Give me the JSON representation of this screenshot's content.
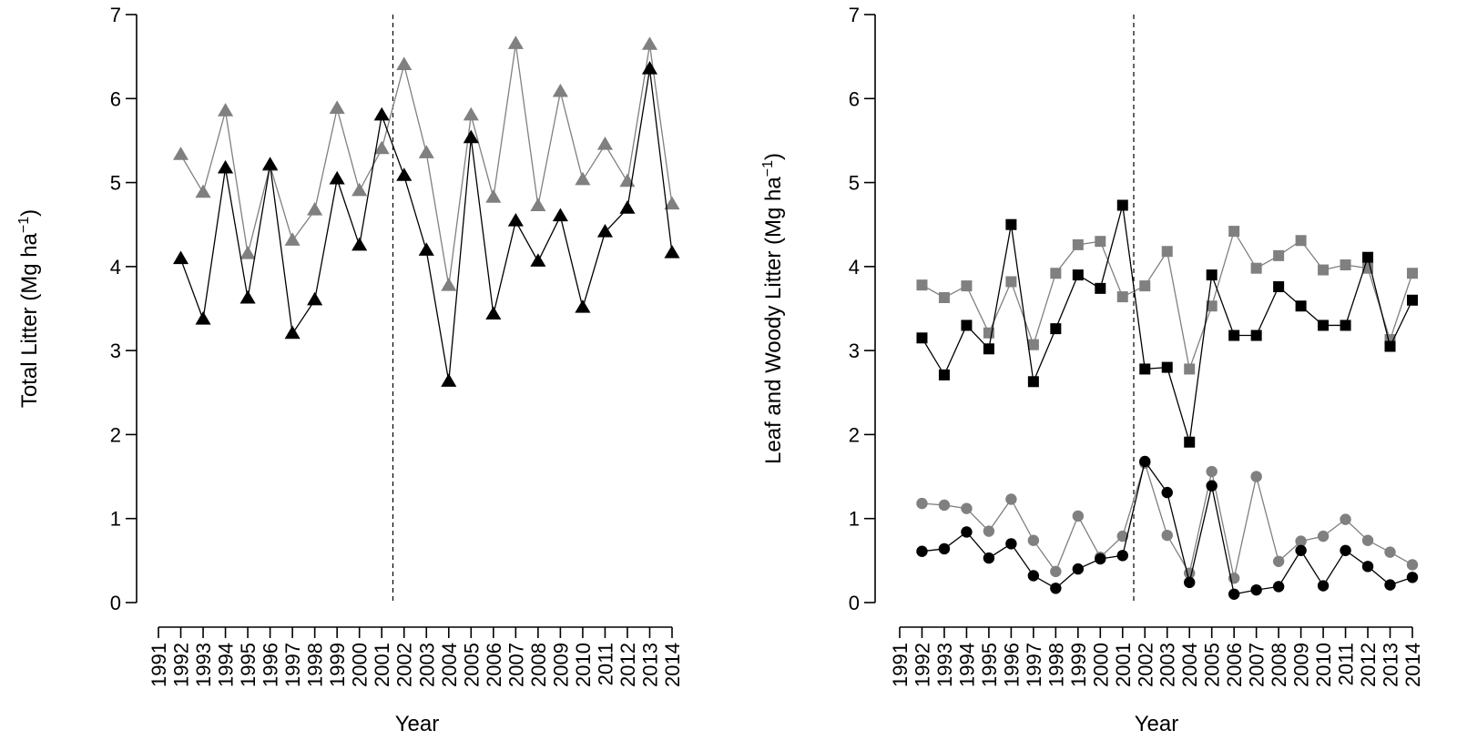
{
  "chart_data": [
    {
      "type": "line",
      "ylabel_prefix": "Total Litter (Mg ha",
      "ylabel_sup": "−1",
      "ylabel_suffix": ")",
      "xlabel": "Year",
      "xlim": [
        1991,
        2014
      ],
      "ylim": [
        0,
        7
      ],
      "yticks": [
        0,
        1,
        2,
        3,
        4,
        5,
        6,
        7
      ],
      "xticks": [
        1991,
        1992,
        1993,
        1994,
        1995,
        1996,
        1997,
        1998,
        1999,
        2000,
        2001,
        2002,
        2003,
        2004,
        2005,
        2006,
        2007,
        2008,
        2009,
        2010,
        2011,
        2012,
        2013,
        2014
      ],
      "vline_x": 2001.5,
      "x": [
        1992,
        1993,
        1994,
        1995,
        1996,
        1997,
        1998,
        1999,
        2000,
        2001,
        2002,
        2003,
        2004,
        2005,
        2006,
        2007,
        2008,
        2009,
        2010,
        2011,
        2012,
        2013,
        2014
      ],
      "series": [
        {
          "marker": "triangle",
          "color": "#808080",
          "values": [
            5.33,
            4.88,
            5.85,
            4.15,
            5.2,
            4.31,
            4.67,
            5.88,
            4.9,
            5.4,
            6.4,
            5.35,
            3.77,
            5.8,
            4.82,
            6.65,
            4.72,
            6.08,
            5.03,
            5.45,
            5.01,
            6.64,
            4.74
          ]
        },
        {
          "marker": "triangle",
          "color": "#000000",
          "values": [
            4.09,
            3.37,
            5.17,
            3.62,
            5.21,
            3.2,
            3.6,
            5.04,
            4.25,
            5.8,
            5.08,
            4.19,
            2.63,
            5.53,
            3.43,
            4.54,
            4.06,
            4.6,
            3.51,
            4.41,
            4.69,
            6.35,
            4.16
          ]
        }
      ]
    },
    {
      "type": "line",
      "ylabel_prefix": "Leaf and Woody Litter (Mg ha",
      "ylabel_sup": "−1",
      "ylabel_suffix": ")",
      "xlabel": "Year",
      "xlim": [
        1991,
        2014
      ],
      "ylim": [
        0,
        7
      ],
      "yticks": [
        0,
        1,
        2,
        3,
        4,
        5,
        6,
        7
      ],
      "xticks": [
        1991,
        1992,
        1993,
        1994,
        1995,
        1996,
        1997,
        1998,
        1999,
        2000,
        2001,
        2002,
        2003,
        2004,
        2005,
        2006,
        2007,
        2008,
        2009,
        2010,
        2011,
        2012,
        2013,
        2014
      ],
      "vline_x": 2001.5,
      "x": [
        1992,
        1993,
        1994,
        1995,
        1996,
        1997,
        1998,
        1999,
        2000,
        2001,
        2002,
        2003,
        2004,
        2005,
        2006,
        2007,
        2008,
        2009,
        2010,
        2011,
        2012,
        2013,
        2014
      ],
      "series": [
        {
          "marker": "square",
          "color": "#808080",
          "values": [
            3.78,
            3.63,
            3.77,
            3.21,
            3.82,
            3.07,
            3.92,
            4.26,
            4.3,
            3.64,
            3.77,
            4.18,
            2.78,
            3.53,
            4.42,
            3.98,
            4.13,
            4.31,
            3.96,
            4.02,
            3.98,
            3.13,
            3.92
          ]
        },
        {
          "marker": "square",
          "color": "#000000",
          "values": [
            3.15,
            2.71,
            3.3,
            3.02,
            4.5,
            2.63,
            3.26,
            3.9,
            3.74,
            4.73,
            2.78,
            2.8,
            1.91,
            3.9,
            3.18,
            3.18,
            3.76,
            3.53,
            3.3,
            3.3,
            4.11,
            3.05,
            3.6
          ]
        },
        {
          "marker": "circle",
          "color": "#808080",
          "values": [
            1.18,
            1.16,
            1.12,
            0.85,
            1.23,
            0.74,
            0.37,
            1.03,
            0.54,
            0.79,
            1.66,
            0.8,
            0.35,
            1.56,
            0.29,
            1.5,
            0.49,
            0.73,
            0.79,
            0.99,
            0.74,
            0.6,
            0.45
          ]
        },
        {
          "marker": "circle",
          "color": "#000000",
          "values": [
            0.61,
            0.64,
            0.84,
            0.53,
            0.7,
            0.32,
            0.17,
            0.4,
            0.52,
            0.56,
            1.68,
            1.31,
            0.24,
            1.39,
            0.1,
            0.15,
            0.19,
            0.62,
            0.2,
            0.62,
            0.43,
            0.21,
            0.3
          ]
        }
      ]
    }
  ]
}
